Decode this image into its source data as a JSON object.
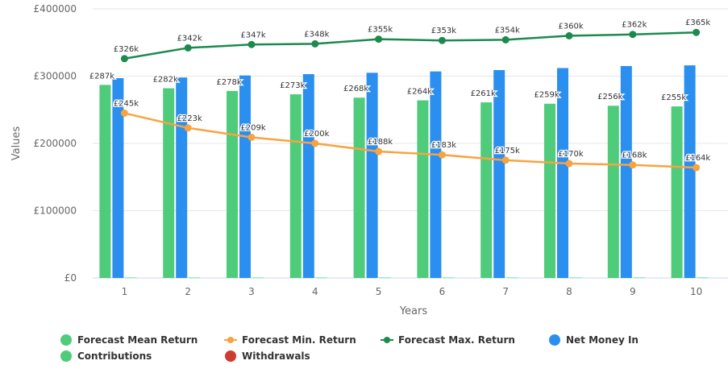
{
  "chart_data": {
    "type": "bar",
    "title": "",
    "xlabel": "Years",
    "ylabel": "Values",
    "ylim": [
      0,
      400000
    ],
    "yticks": [
      0,
      100000,
      200000,
      300000,
      400000
    ],
    "ytick_labels": [
      "£0",
      "£100000",
      "£200000",
      "£300000",
      "£400000"
    ],
    "grid": true,
    "legend_position": "bottom",
    "categories": [
      "1",
      "2",
      "3",
      "4",
      "5",
      "6",
      "7",
      "8",
      "9",
      "10"
    ],
    "series": [
      {
        "name": "Forecast Mean Return",
        "kind": "bar",
        "color": "#4fcb7c",
        "values": [
          287000,
          282000,
          278000,
          273000,
          268000,
          264000,
          261000,
          259000,
          256000,
          255000
        ],
        "labels": [
          "£287k",
          "£282k",
          "£278k",
          "£273k",
          "£268k",
          "£264k",
          "£261k",
          "£259k",
          "£256k",
          "£255k"
        ]
      },
      {
        "name": "Net Money In",
        "kind": "bar",
        "color": "#2b8fef",
        "values": [
          297000,
          298000,
          301000,
          303000,
          305000,
          307000,
          309000,
          312000,
          315000,
          316000
        ]
      },
      {
        "name": "Contributions",
        "kind": "bar",
        "color": "#9ee6ca",
        "values": [
          1200,
          1200,
          1200,
          1200,
          1200,
          1200,
          1200,
          1200,
          1200,
          1200
        ]
      },
      {
        "name": "Forecast Min. Return",
        "kind": "line",
        "color": "#f8a340",
        "values": [
          245000,
          223000,
          209000,
          200000,
          188000,
          183000,
          175000,
          170000,
          168000,
          164000
        ],
        "labels": [
          "£245k",
          "£223k",
          "£209k",
          "£200k",
          "£188k",
          "£183k",
          "£175k",
          "£170k",
          "£168k",
          "£164k"
        ]
      },
      {
        "name": "Forecast Max. Return",
        "kind": "line",
        "color": "#1d8a4d",
        "values": [
          326000,
          342000,
          347000,
          348000,
          355000,
          353000,
          354000,
          360000,
          362000,
          365000
        ],
        "labels": [
          "£326k",
          "£342k",
          "£347k",
          "£348k",
          "£355k",
          "£353k",
          "£354k",
          "£360k",
          "£362k",
          "£365k"
        ]
      },
      {
        "name": "Withdrawals",
        "kind": "bar",
        "color": "#d03a30",
        "values": [
          0,
          0,
          0,
          0,
          0,
          0,
          0,
          0,
          0,
          0
        ]
      }
    ],
    "legend": [
      {
        "name": "Forecast Mean Return",
        "marker": "dot",
        "color": "#4fcb7c"
      },
      {
        "name": "Forecast Min. Return",
        "marker": "line-dot",
        "color": "#f8a340"
      },
      {
        "name": "Forecast Max. Return",
        "marker": "line-dot",
        "color": "#1d8a4d"
      },
      {
        "name": "Net Money In",
        "marker": "dot",
        "color": "#2b8fef"
      },
      {
        "name": "Contributions",
        "marker": "dot",
        "color": "#4fcb7c"
      },
      {
        "name": "Withdrawals",
        "marker": "dot",
        "color": "#d03a30"
      }
    ]
  }
}
